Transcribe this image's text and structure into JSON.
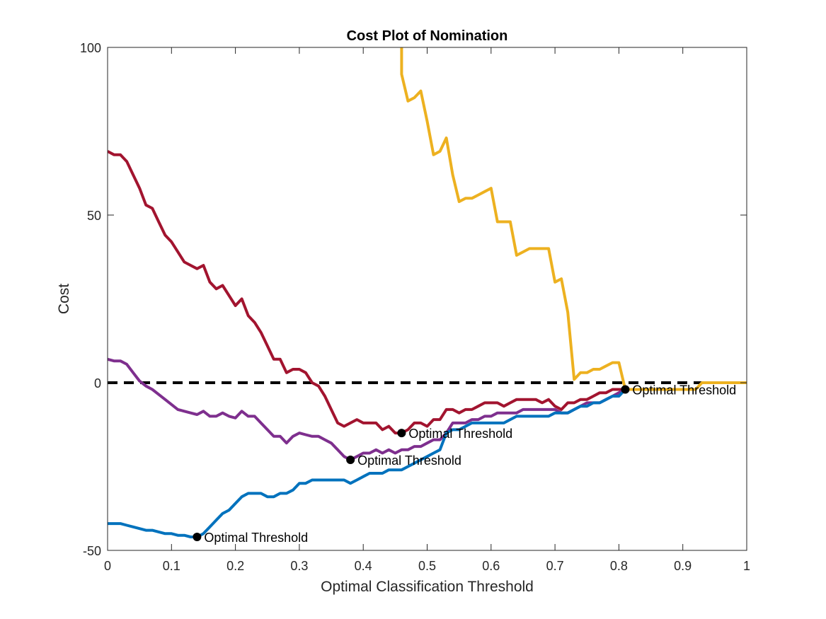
{
  "chart_data": {
    "type": "line",
    "title": "Cost Plot of Nomination",
    "xlabel": "Optimal Classification Threshold",
    "ylabel": "Cost",
    "xlim": [
      0,
      1
    ],
    "ylim": [
      -50,
      100
    ],
    "xticks": [
      0,
      0.1,
      0.2,
      0.3,
      0.4,
      0.5,
      0.6,
      0.7,
      0.8,
      0.9,
      1
    ],
    "xtick_labels": [
      "0",
      "0.1",
      "0.2",
      "0.3",
      "0.4",
      "0.5",
      "0.6",
      "0.7",
      "0.8",
      "0.9",
      "1"
    ],
    "yticks": [
      -50,
      0,
      50,
      100
    ],
    "ytick_labels": [
      "-50",
      "0",
      "50",
      "100"
    ],
    "grid": false,
    "box": true,
    "reference_line": {
      "y": 0,
      "style": "dashed",
      "color": "#000000"
    },
    "series": [
      {
        "color": "#A2142F",
        "x": [
          0,
          0.01,
          0.02,
          0.03,
          0.04,
          0.05,
          0.06,
          0.07,
          0.08,
          0.09,
          0.1,
          0.11,
          0.12,
          0.13,
          0.14,
          0.15,
          0.16,
          0.17,
          0.18,
          0.19,
          0.2,
          0.21,
          0.22,
          0.23,
          0.24,
          0.25,
          0.26,
          0.27,
          0.28,
          0.29,
          0.3,
          0.31,
          0.32,
          0.33,
          0.34,
          0.35,
          0.36,
          0.37,
          0.38,
          0.39,
          0.4,
          0.41,
          0.42,
          0.43,
          0.44,
          0.45,
          0.46,
          0.47,
          0.48,
          0.49,
          0.5,
          0.51,
          0.52,
          0.53,
          0.54,
          0.55,
          0.56,
          0.57,
          0.58,
          0.59,
          0.6,
          0.61,
          0.62,
          0.63,
          0.64,
          0.65,
          0.66,
          0.67,
          0.68,
          0.69,
          0.7,
          0.71,
          0.72,
          0.73,
          0.74,
          0.75,
          0.76,
          0.77,
          0.78,
          0.79,
          0.8,
          0.81
        ],
        "y": [
          69,
          68,
          68,
          66,
          62,
          58,
          53,
          52,
          48,
          44,
          42,
          39,
          36,
          35,
          34,
          35,
          30,
          28,
          29,
          26,
          23,
          25,
          20,
          18,
          15,
          11,
          7,
          7,
          3,
          4,
          4,
          3,
          0,
          -1,
          -4,
          -8,
          -12,
          -13,
          -12,
          -11,
          -12,
          -12,
          -12,
          -14,
          -13,
          -15,
          -15,
          -14,
          -12,
          -12,
          -13,
          -11,
          -11,
          -8,
          -8,
          -9,
          -8,
          -8,
          -7,
          -6,
          -6,
          -6,
          -7,
          -6,
          -5,
          -5,
          -5,
          -5,
          -6,
          -5,
          -7,
          -8,
          -6,
          -6,
          -5,
          -5,
          -4,
          -3,
          -3,
          -2,
          -2,
          -2
        ]
      },
      {
        "color": "#7E2F8E",
        "x": [
          0,
          0.01,
          0.02,
          0.03,
          0.04,
          0.05,
          0.06,
          0.07,
          0.08,
          0.09,
          0.1,
          0.11,
          0.12,
          0.13,
          0.14,
          0.15,
          0.16,
          0.17,
          0.18,
          0.19,
          0.2,
          0.21,
          0.22,
          0.23,
          0.24,
          0.25,
          0.26,
          0.27,
          0.28,
          0.29,
          0.3,
          0.31,
          0.32,
          0.33,
          0.34,
          0.35,
          0.36,
          0.37,
          0.38,
          0.39,
          0.4,
          0.41,
          0.42,
          0.43,
          0.44,
          0.45,
          0.46,
          0.47,
          0.48,
          0.49,
          0.5,
          0.51,
          0.52,
          0.53,
          0.54,
          0.55,
          0.56,
          0.57,
          0.58,
          0.59,
          0.6,
          0.61,
          0.62,
          0.63,
          0.64,
          0.65,
          0.66,
          0.67,
          0.68,
          0.69,
          0.7,
          0.71,
          0.72,
          0.73,
          0.74,
          0.75,
          0.76,
          0.77,
          0.78,
          0.79,
          0.8,
          0.81
        ],
        "y": [
          7,
          6.5,
          6.5,
          5.5,
          3,
          0.5,
          -1,
          -2,
          -3.5,
          -5,
          -6.5,
          -8,
          -8.5,
          -9,
          -9.5,
          -8.5,
          -10,
          -10,
          -9,
          -10,
          -10.5,
          -8.5,
          -10,
          -10,
          -12,
          -14,
          -16,
          -16,
          -18,
          -16,
          -15,
          -15.5,
          -16,
          -16,
          -17,
          -18,
          -20,
          -22,
          -23,
          -22,
          -21,
          -21,
          -20,
          -21,
          -20,
          -21,
          -20,
          -20,
          -19,
          -19,
          -18,
          -17,
          -17,
          -15,
          -12,
          -12,
          -12,
          -11,
          -11,
          -10,
          -10,
          -9,
          -9,
          -9,
          -9,
          -8,
          -8,
          -8,
          -8,
          -8,
          -8,
          -9,
          -9,
          -8,
          -7,
          -6,
          -6,
          -6,
          -5,
          -4,
          -3,
          -2
        ]
      },
      {
        "color": "#0072BD",
        "x": [
          0,
          0.01,
          0.02,
          0.03,
          0.04,
          0.05,
          0.06,
          0.07,
          0.08,
          0.09,
          0.1,
          0.11,
          0.12,
          0.13,
          0.14,
          0.15,
          0.16,
          0.17,
          0.18,
          0.19,
          0.2,
          0.21,
          0.22,
          0.23,
          0.24,
          0.25,
          0.26,
          0.27,
          0.28,
          0.29,
          0.3,
          0.31,
          0.32,
          0.33,
          0.34,
          0.35,
          0.36,
          0.37,
          0.38,
          0.39,
          0.4,
          0.41,
          0.42,
          0.43,
          0.44,
          0.45,
          0.46,
          0.47,
          0.48,
          0.49,
          0.5,
          0.51,
          0.52,
          0.53,
          0.54,
          0.55,
          0.56,
          0.57,
          0.58,
          0.59,
          0.6,
          0.61,
          0.62,
          0.63,
          0.64,
          0.65,
          0.66,
          0.67,
          0.68,
          0.69,
          0.7,
          0.71,
          0.72,
          0.73,
          0.74,
          0.75,
          0.76,
          0.77,
          0.78,
          0.79,
          0.8,
          0.81
        ],
        "y": [
          -42,
          -42,
          -42,
          -42.5,
          -43,
          -43.5,
          -44,
          -44,
          -44.5,
          -45,
          -45,
          -45.5,
          -45.5,
          -46,
          -46,
          -45,
          -43,
          -41,
          -39,
          -38,
          -36,
          -34,
          -33,
          -33,
          -33,
          -34,
          -34,
          -33,
          -33,
          -32,
          -30,
          -30,
          -29,
          -29,
          -29,
          -29,
          -29,
          -29,
          -30,
          -29,
          -28,
          -27,
          -27,
          -27,
          -26,
          -26,
          -26,
          -25,
          -24,
          -23,
          -22,
          -21,
          -20,
          -15,
          -14,
          -14,
          -13,
          -12,
          -12,
          -12,
          -12,
          -12,
          -12,
          -11,
          -10,
          -10,
          -10,
          -10,
          -10,
          -10,
          -9,
          -9,
          -9,
          -8,
          -7,
          -7,
          -6,
          -6,
          -5,
          -4,
          -4,
          -2
        ]
      },
      {
        "color": "#EDB120",
        "x": [
          0.46,
          0.46,
          0.47,
          0.48,
          0.49,
          0.5,
          0.51,
          0.52,
          0.53,
          0.54,
          0.55,
          0.56,
          0.57,
          0.58,
          0.59,
          0.6,
          0.61,
          0.62,
          0.63,
          0.64,
          0.65,
          0.66,
          0.67,
          0.68,
          0.69,
          0.7,
          0.71,
          0.72,
          0.73,
          0.74,
          0.75,
          0.76,
          0.77,
          0.78,
          0.79,
          0.8,
          0.81,
          0.82,
          0.83,
          0.84,
          0.85,
          0.86,
          0.87,
          0.88,
          0.89,
          0.9,
          0.91,
          0.92,
          0.93,
          0.94,
          0.95,
          0.96,
          0.97,
          0.98,
          0.99,
          1
        ],
        "y": [
          100,
          92,
          84,
          85,
          87,
          78,
          68,
          69,
          73,
          62,
          54,
          55,
          55,
          56,
          57,
          58,
          48,
          48,
          48,
          38,
          39,
          40,
          40,
          40,
          40,
          30,
          31,
          21,
          1,
          3,
          3,
          4,
          4,
          5,
          6,
          6,
          -2,
          -2,
          -2,
          -2,
          -2,
          -2,
          -2,
          -2,
          -2,
          -2,
          -2,
          -2,
          0,
          0,
          0,
          0,
          0,
          0,
          0,
          0
        ]
      }
    ],
    "annotations": [
      {
        "x": 0.14,
        "y": -46,
        "text": "Optimal Threshold"
      },
      {
        "x": 0.38,
        "y": -23,
        "text": "Optimal Threshold"
      },
      {
        "x": 0.46,
        "y": -15,
        "text": "Optimal Threshold"
      },
      {
        "x": 0.81,
        "y": -2,
        "text": "Optimal Threshold"
      }
    ]
  }
}
